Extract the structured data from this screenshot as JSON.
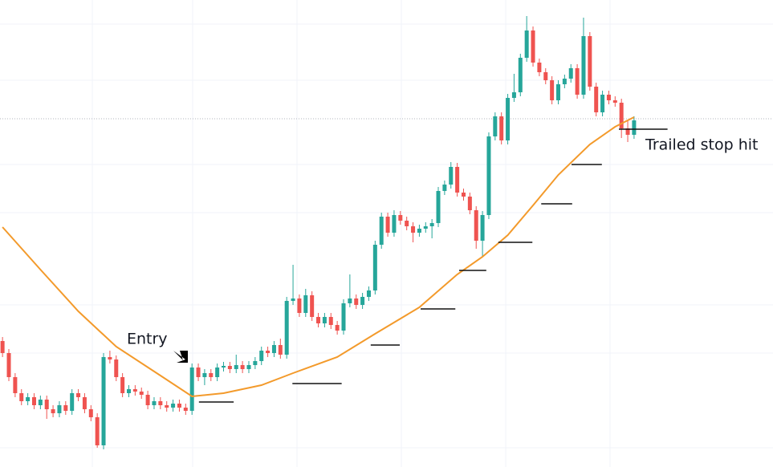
{
  "chart_data": {
    "type": "candlestick",
    "up_color": "#26a69a",
    "down_color": "#ef5350",
    "xlim": [
      -0.4,
      122
    ],
    "ylim": [
      0,
      582
    ],
    "open": [
      157,
      142,
      112,
      92,
      82,
      87,
      77,
      84,
      72,
      67,
      77,
      70,
      92,
      87,
      72,
      62,
      27,
      137,
      134,
      112,
      92,
      97,
      94,
      90,
      77,
      82,
      77,
      74,
      79,
      74,
      70,
      124,
      112,
      117,
      112,
      124,
      126,
      122,
      127,
      122,
      127,
      132,
      145,
      142,
      152,
      140,
      207,
      210,
      192,
      214,
      187,
      179,
      187,
      177,
      170,
      204,
      210,
      202,
      212,
      220,
      277,
      312,
      292,
      314,
      307,
      300,
      292,
      297,
      300,
      304,
      344,
      352,
      374,
      342,
      337,
      320,
      282,
      314,
      412,
      437,
      407,
      460,
      467,
      510,
      544,
      504,
      492,
      482,
      457,
      477,
      484,
      497,
      464,
      537,
      474,
      442,
      464,
      457,
      454,
      422,
      414
    ],
    "high": [
      162,
      147,
      117,
      97,
      92,
      92,
      89,
      89,
      77,
      82,
      82,
      97,
      97,
      92,
      77,
      67,
      142,
      145,
      139,
      117,
      102,
      102,
      99,
      95,
      87,
      87,
      82,
      84,
      84,
      79,
      129,
      129,
      122,
      122,
      129,
      131,
      131,
      140,
      132,
      132,
      137,
      150,
      150,
      157,
      160,
      212,
      252,
      215,
      222,
      219,
      192,
      192,
      192,
      182,
      209,
      240,
      215,
      217,
      225,
      282,
      317,
      317,
      320,
      319,
      312,
      305,
      302,
      305,
      309,
      349,
      357,
      380,
      379,
      347,
      342,
      325,
      319,
      417,
      442,
      442,
      465,
      490,
      515,
      562,
      549,
      509,
      497,
      487,
      482,
      489,
      502,
      502,
      560,
      542,
      479,
      469,
      469,
      462,
      459,
      432,
      437
    ],
    "low": [
      137,
      107,
      87,
      77,
      77,
      72,
      72,
      60,
      62,
      62,
      65,
      65,
      82,
      67,
      57,
      24,
      22,
      129,
      107,
      87,
      87,
      89,
      85,
      72,
      72,
      72,
      69,
      69,
      69,
      65,
      65,
      107,
      102,
      107,
      107,
      119,
      117,
      117,
      117,
      117,
      122,
      127,
      137,
      137,
      135,
      135,
      202,
      187,
      187,
      182,
      174,
      174,
      172,
      165,
      165,
      199,
      197,
      197,
      207,
      215,
      272,
      287,
      287,
      302,
      295,
      280,
      287,
      292,
      285,
      299,
      339,
      347,
      337,
      332,
      315,
      272,
      262,
      309,
      407,
      402,
      402,
      455,
      462,
      505,
      499,
      487,
      477,
      452,
      452,
      472,
      479,
      459,
      459,
      469,
      437,
      437,
      452,
      449,
      410,
      405,
      409
    ],
    "close": [
      142,
      112,
      92,
      82,
      87,
      77,
      84,
      72,
      67,
      77,
      70,
      92,
      87,
      72,
      62,
      27,
      137,
      134,
      112,
      92,
      97,
      94,
      90,
      77,
      82,
      77,
      74,
      79,
      74,
      70,
      124,
      112,
      117,
      112,
      124,
      126,
      122,
      127,
      122,
      127,
      132,
      145,
      142,
      152,
      140,
      207,
      210,
      192,
      214,
      187,
      179,
      187,
      177,
      170,
      204,
      210,
      202,
      212,
      220,
      277,
      312,
      292,
      314,
      307,
      300,
      292,
      297,
      300,
      304,
      344,
      352,
      374,
      342,
      337,
      320,
      282,
      314,
      412,
      437,
      407,
      460,
      467,
      510,
      544,
      504,
      492,
      482,
      457,
      477,
      484,
      497,
      464,
      537,
      474,
      442,
      464,
      457,
      454,
      422,
      414,
      432
    ],
    "ma": {
      "color": "#f39a2b",
      "x": [
        0,
        6,
        12,
        18,
        25,
        30,
        35,
        41,
        46,
        53,
        59,
        66,
        72,
        76,
        80,
        84,
        88,
        93,
        97,
        100
      ],
      "values": [
        299,
        246,
        194,
        150,
        114,
        88,
        92,
        102,
        117,
        137,
        166,
        199,
        240,
        262,
        289,
        326,
        364,
        402,
        424,
        436
      ]
    },
    "stops": {
      "color": "#111111",
      "values": [
        81,
        104,
        152,
        197,
        245,
        280,
        328,
        377,
        421
      ],
      "x_start": [
        31.1,
        45.9,
        58.3,
        66.2,
        72.3,
        78.5,
        85.3,
        90.1,
        97.6
      ],
      "x_end": [
        36.6,
        53.7,
        62.9,
        71.7,
        76.6,
        83.9,
        90.2,
        94.9,
        105.3
      ]
    },
    "price_line": 434,
    "annotations": [
      {
        "text": "Entry"
      },
      {
        "text": "Trailed stop hit"
      }
    ]
  }
}
